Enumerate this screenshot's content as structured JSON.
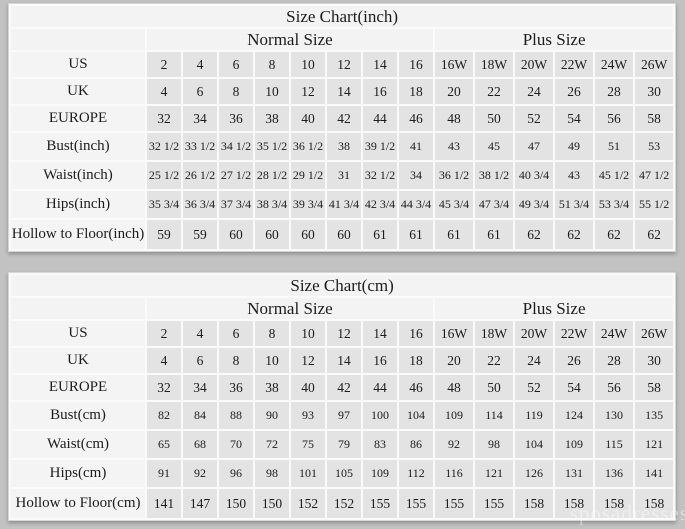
{
  "watermark": "sposadresses",
  "colors": {
    "page_background": "#c2c2c2",
    "data_cell_background": "#e3e3e3",
    "header_cell_background": "#f3f3f3",
    "grid_gap": "#fafafa",
    "text": "#1c1c1c"
  },
  "chart_data": [
    {
      "type": "table",
      "title": "Size Chart(inch)",
      "column_groups": [
        {
          "label": "Normal Size",
          "span": 8
        },
        {
          "label": "Plus Size",
          "span": 6
        }
      ],
      "rows": [
        {
          "label": "US",
          "normal": [
            "2",
            "4",
            "6",
            "8",
            "10",
            "12",
            "14",
            "16"
          ],
          "plus": [
            "16W",
            "18W",
            "20W",
            "22W",
            "24W",
            "26W"
          ]
        },
        {
          "label": "UK",
          "normal": [
            "4",
            "6",
            "8",
            "10",
            "12",
            "14",
            "16",
            "18"
          ],
          "plus": [
            "20",
            "22",
            "24",
            "26",
            "28",
            "30"
          ]
        },
        {
          "label": "EUROPE",
          "normal": [
            "32",
            "34",
            "36",
            "38",
            "40",
            "42",
            "44",
            "46"
          ],
          "plus": [
            "48",
            "50",
            "52",
            "54",
            "56",
            "58"
          ]
        },
        {
          "label": "Bust(inch)",
          "normal": [
            "32 1/2",
            "33 1/2",
            "34 1/2",
            "35 1/2",
            "36 1/2",
            "38",
            "39 1/2",
            "41"
          ],
          "plus": [
            "43",
            "45",
            "47",
            "49",
            "51",
            "53"
          ]
        },
        {
          "label": "Waist(inch)",
          "normal": [
            "25 1/2",
            "26 1/2",
            "27 1/2",
            "28 1/2",
            "29 1/2",
            "31",
            "32 1/2",
            "34"
          ],
          "plus": [
            "36 1/2",
            "38 1/2",
            "40 3/4",
            "43",
            "45 1/2",
            "47 1/2"
          ]
        },
        {
          "label": "Hips(inch)",
          "normal": [
            "35 3/4",
            "36 3/4",
            "37 3/4",
            "38 3/4",
            "39 3/4",
            "41 3/4",
            "42 3/4",
            "44 3/4"
          ],
          "plus": [
            "45 3/4",
            "47 3/4",
            "49 3/4",
            "51 3/4",
            "53 3/4",
            "55 1/2"
          ]
        },
        {
          "label": "Hollow to Floor(inch)",
          "normal": [
            "59",
            "59",
            "60",
            "60",
            "60",
            "60",
            "61",
            "61"
          ],
          "plus": [
            "61",
            "61",
            "62",
            "62",
            "62",
            "62"
          ]
        }
      ]
    },
    {
      "type": "table",
      "title": "Size Chart(cm)",
      "column_groups": [
        {
          "label": "Normal Size",
          "span": 8
        },
        {
          "label": "Plus Size",
          "span": 6
        }
      ],
      "rows": [
        {
          "label": "US",
          "normal": [
            "2",
            "4",
            "6",
            "8",
            "10",
            "12",
            "14",
            "16"
          ],
          "plus": [
            "16W",
            "18W",
            "20W",
            "22W",
            "24W",
            "26W"
          ]
        },
        {
          "label": "UK",
          "normal": [
            "4",
            "6",
            "8",
            "10",
            "12",
            "14",
            "16",
            "18"
          ],
          "plus": [
            "20",
            "22",
            "24",
            "26",
            "28",
            "30"
          ]
        },
        {
          "label": "EUROPE",
          "normal": [
            "32",
            "34",
            "36",
            "38",
            "40",
            "42",
            "44",
            "46"
          ],
          "plus": [
            "48",
            "50",
            "52",
            "54",
            "56",
            "58"
          ]
        },
        {
          "label": "Bust(cm)",
          "normal": [
            "82",
            "84",
            "88",
            "90",
            "93",
            "97",
            "100",
            "104"
          ],
          "plus": [
            "109",
            "114",
            "119",
            "124",
            "130",
            "135"
          ]
        },
        {
          "label": "Waist(cm)",
          "normal": [
            "65",
            "68",
            "70",
            "72",
            "75",
            "79",
            "83",
            "86"
          ],
          "plus": [
            "92",
            "98",
            "104",
            "109",
            "115",
            "121"
          ]
        },
        {
          "label": "Hips(cm)",
          "normal": [
            "91",
            "92",
            "96",
            "98",
            "101",
            "105",
            "109",
            "112"
          ],
          "plus": [
            "116",
            "121",
            "126",
            "131",
            "136",
            "141"
          ]
        },
        {
          "label": "Hollow to Floor(cm)",
          "normal": [
            "141",
            "147",
            "150",
            "150",
            "152",
            "152",
            "155",
            "155"
          ],
          "plus": [
            "155",
            "155",
            "158",
            "158",
            "158",
            "158"
          ]
        }
      ]
    }
  ]
}
